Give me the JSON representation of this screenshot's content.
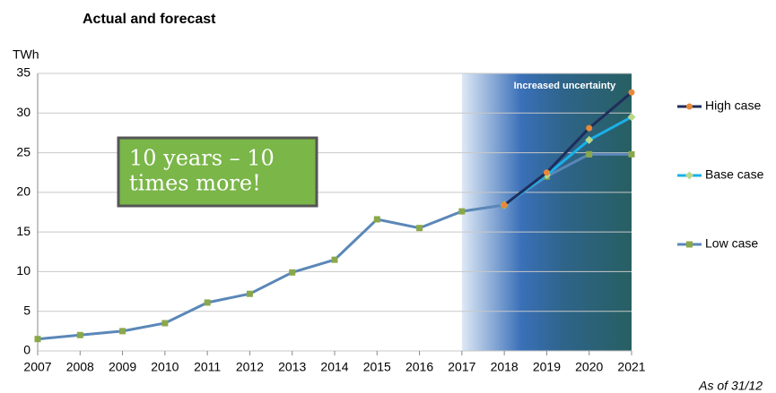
{
  "chart_data": {
    "type": "line",
    "title": "Actual and forecast",
    "y_label": "TWh",
    "footnote": "As of 31/12",
    "annotation": {
      "lines": [
        "10 years – 10",
        "times more!"
      ]
    },
    "shaded_region": {
      "xlim": [
        2017,
        2021
      ],
      "label": "Increased uncertainty"
    },
    "x": [
      2007,
      2008,
      2009,
      2010,
      2011,
      2012,
      2013,
      2014,
      2015,
      2016,
      2017,
      2018,
      2019,
      2020,
      2021
    ],
    "series": [
      {
        "name": "High case",
        "color": "#1f2d5c",
        "marker_color": "#e8893a",
        "marker": "circle",
        "values": [
          null,
          null,
          null,
          null,
          null,
          null,
          null,
          null,
          null,
          null,
          null,
          18.4,
          22.5,
          28.1,
          32.6
        ]
      },
      {
        "name": "Base case",
        "color": "#1ab0e8",
        "marker_color": "#b8d98a",
        "marker": "diamond",
        "values": [
          null,
          null,
          null,
          null,
          null,
          null,
          null,
          null,
          null,
          null,
          null,
          18.4,
          22.2,
          26.6,
          29.5
        ]
      },
      {
        "name": "Low case",
        "color": "#5b87b8",
        "marker_color": "#8aa84a",
        "marker": "square",
        "values": [
          1.5,
          2.0,
          2.5,
          3.5,
          6.1,
          7.2,
          9.9,
          11.5,
          16.6,
          15.5,
          17.6,
          18.4,
          22.0,
          24.8,
          24.8
        ]
      }
    ],
    "xlim": [
      2007,
      2021
    ],
    "xticks": [
      2007,
      2008,
      2009,
      2010,
      2011,
      2012,
      2013,
      2014,
      2015,
      2016,
      2017,
      2018,
      2019,
      2020,
      2021
    ],
    "ylim": [
      0,
      35
    ],
    "yticks": [
      0,
      5,
      10,
      15,
      20,
      25,
      30,
      35
    ],
    "grid": true
  }
}
